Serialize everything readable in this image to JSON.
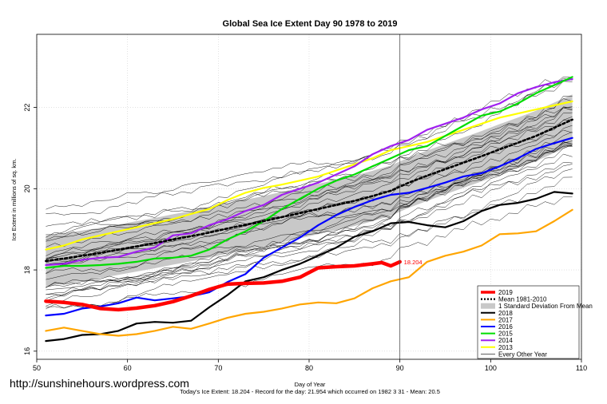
{
  "chart_data": {
    "type": "line",
    "title": "Global Sea Ice Extent Day 90 1978 to 2019",
    "xlabel": "Day of Year",
    "ylabel": "Ice Extent in millions of sq. km.",
    "xlim": [
      50,
      110
    ],
    "ylim": [
      15.8,
      23.8
    ],
    "x_ticks": [
      "50",
      "60",
      "70",
      "80",
      "90",
      "100",
      "110"
    ],
    "y_ticks": [
      "16",
      "18",
      "20",
      "22"
    ],
    "grid": true,
    "marker_day": 90,
    "current_value_label": "18.204",
    "footer": "Today's Ice Extent: 18.204  - Record for the day: 21.954 which occurred on 1982 3 31  - Mean: 20.5",
    "watermark": "http://sunshinehours.wordpress.com",
    "legend_position": "bottom-right",
    "legend": [
      {
        "name": "2019",
        "color": "#ff0000",
        "style": "thick"
      },
      {
        "name": "Mean 1981-2010",
        "color": "#000000",
        "style": "dotted"
      },
      {
        "name": "1 Standard Deviation From Mean",
        "color": "#c8c8c8",
        "style": "band"
      },
      {
        "name": "2018",
        "color": "#000000",
        "style": "solid"
      },
      {
        "name": "2017",
        "color": "#ffa500",
        "style": "solid"
      },
      {
        "name": "2016",
        "color": "#0000ff",
        "style": "solid"
      },
      {
        "name": "2015",
        "color": "#00dd00",
        "style": "solid"
      },
      {
        "name": "2014",
        "color": "#a020f0",
        "style": "solid"
      },
      {
        "name": "2013",
        "color": "#ffff00",
        "style": "solid"
      },
      {
        "name": "Every Other Year",
        "color": "#000000",
        "style": "thin"
      }
    ],
    "series": [
      {
        "name": "2019",
        "color": "#ff0000",
        "x": [
          51,
          53,
          55,
          57,
          59,
          61,
          63,
          65,
          67,
          69,
          71,
          73,
          75,
          77,
          79,
          81,
          83,
          85,
          87,
          88,
          89,
          90
        ],
        "values": [
          17.23,
          17.2,
          17.15,
          17.05,
          17.02,
          17.06,
          17.12,
          17.22,
          17.36,
          17.52,
          17.65,
          17.67,
          17.68,
          17.72,
          17.82,
          18.05,
          18.08,
          18.1,
          18.15,
          18.18,
          18.1,
          18.2
        ]
      },
      {
        "name": "Mean 1981-2010",
        "color": "#000000",
        "x": [
          51,
          53,
          55,
          57,
          59,
          61,
          63,
          65,
          67,
          69,
          71,
          73,
          75,
          77,
          79,
          81,
          83,
          85,
          87,
          89,
          91,
          93,
          95,
          97,
          99,
          101,
          103,
          105,
          107,
          109
        ],
        "values": [
          18.22,
          18.28,
          18.35,
          18.42,
          18.5,
          18.58,
          18.66,
          18.75,
          18.83,
          18.92,
          19.02,
          19.11,
          19.2,
          19.3,
          19.4,
          19.5,
          19.6,
          19.7,
          19.82,
          19.95,
          20.15,
          20.32,
          20.48,
          20.64,
          20.8,
          20.97,
          21.13,
          21.3,
          21.5,
          21.7
        ]
      },
      {
        "name": "2018",
        "color": "#000000",
        "x": [
          51,
          53,
          55,
          57,
          59,
          61,
          63,
          65,
          67,
          69,
          71,
          73,
          75,
          77,
          79,
          81,
          83,
          85,
          87,
          89,
          91,
          93,
          95,
          97,
          99,
          101,
          103,
          105,
          107,
          109
        ],
        "values": [
          16.25,
          16.3,
          16.4,
          16.42,
          16.5,
          16.68,
          16.72,
          16.7,
          16.75,
          17.08,
          17.38,
          17.72,
          17.82,
          18.0,
          18.15,
          18.35,
          18.55,
          18.82,
          18.95,
          19.15,
          19.18,
          19.1,
          19.05,
          19.2,
          19.45,
          19.6,
          19.65,
          19.75,
          19.92,
          19.88
        ]
      },
      {
        "name": "2017",
        "color": "#ffa500",
        "x": [
          51,
          53,
          55,
          57,
          59,
          61,
          63,
          65,
          67,
          69,
          71,
          73,
          75,
          77,
          79,
          81,
          83,
          85,
          87,
          89,
          91,
          93,
          95,
          97,
          99,
          101,
          103,
          105,
          107,
          109
        ],
        "values": [
          16.5,
          16.58,
          16.5,
          16.42,
          16.38,
          16.42,
          16.5,
          16.6,
          16.55,
          16.68,
          16.82,
          16.92,
          16.97,
          17.05,
          17.15,
          17.2,
          17.18,
          17.3,
          17.55,
          17.72,
          17.82,
          18.2,
          18.35,
          18.45,
          18.6,
          18.88,
          18.9,
          18.95,
          19.2,
          19.48
        ]
      },
      {
        "name": "2016",
        "color": "#0000ff",
        "x": [
          51,
          53,
          55,
          57,
          59,
          61,
          63,
          65,
          67,
          69,
          71,
          73,
          75,
          77,
          79,
          81,
          83,
          85,
          87,
          89,
          91,
          93,
          95,
          97,
          99,
          101,
          103,
          105,
          107,
          109
        ],
        "values": [
          16.88,
          16.92,
          17.05,
          17.1,
          17.18,
          17.32,
          17.25,
          17.3,
          17.35,
          17.45,
          17.7,
          17.9,
          18.3,
          18.55,
          18.8,
          19.1,
          19.35,
          19.55,
          19.72,
          19.85,
          19.9,
          20.02,
          20.15,
          20.3,
          20.38,
          20.55,
          20.75,
          20.98,
          21.12,
          21.25
        ]
      },
      {
        "name": "2015",
        "color": "#00dd00",
        "x": [
          51,
          53,
          55,
          57,
          59,
          61,
          63,
          65,
          67,
          69,
          71,
          73,
          75,
          77,
          79,
          81,
          83,
          85,
          87,
          89,
          91,
          93,
          95,
          97,
          99,
          101,
          103,
          105,
          107,
          109
        ],
        "values": [
          18.05,
          18.1,
          18.1,
          18.12,
          18.15,
          18.2,
          18.28,
          18.3,
          18.35,
          18.5,
          18.75,
          18.95,
          19.2,
          19.5,
          19.75,
          20.0,
          20.2,
          20.35,
          20.55,
          20.75,
          20.95,
          21.05,
          21.3,
          21.55,
          21.8,
          21.9,
          22.1,
          22.35,
          22.55,
          22.75
        ]
      },
      {
        "name": "2014",
        "color": "#a020f0",
        "x": [
          51,
          53,
          55,
          57,
          59,
          61,
          63,
          65,
          67,
          69,
          71,
          73,
          75,
          77,
          79,
          81,
          83,
          85,
          87,
          89,
          91,
          93,
          95,
          97,
          99,
          101,
          103,
          105,
          107,
          109
        ],
        "values": [
          18.12,
          18.15,
          18.25,
          18.3,
          18.32,
          18.45,
          18.55,
          18.85,
          18.9,
          19.1,
          19.25,
          19.45,
          19.6,
          19.85,
          20.0,
          20.15,
          20.35,
          20.55,
          20.85,
          21.05,
          21.2,
          21.45,
          21.6,
          21.75,
          21.95,
          22.1,
          22.35,
          22.5,
          22.62,
          22.7
        ]
      },
      {
        "name": "2013",
        "color": "#ffff00",
        "x": [
          51,
          53,
          55,
          57,
          59,
          61,
          63,
          65,
          67,
          69,
          71,
          73,
          75,
          77,
          79,
          81,
          83,
          85,
          87,
          89,
          91,
          93,
          95,
          97,
          99,
          101,
          103,
          105,
          107,
          109
        ],
        "values": [
          18.5,
          18.6,
          18.75,
          18.85,
          18.95,
          19.05,
          19.15,
          19.25,
          19.38,
          19.5,
          19.72,
          19.9,
          20.02,
          20.1,
          20.2,
          20.3,
          20.45,
          20.6,
          20.75,
          20.95,
          21.05,
          21.15,
          21.3,
          21.45,
          21.6,
          21.75,
          21.85,
          21.95,
          22.05,
          22.15
        ]
      }
    ]
  }
}
